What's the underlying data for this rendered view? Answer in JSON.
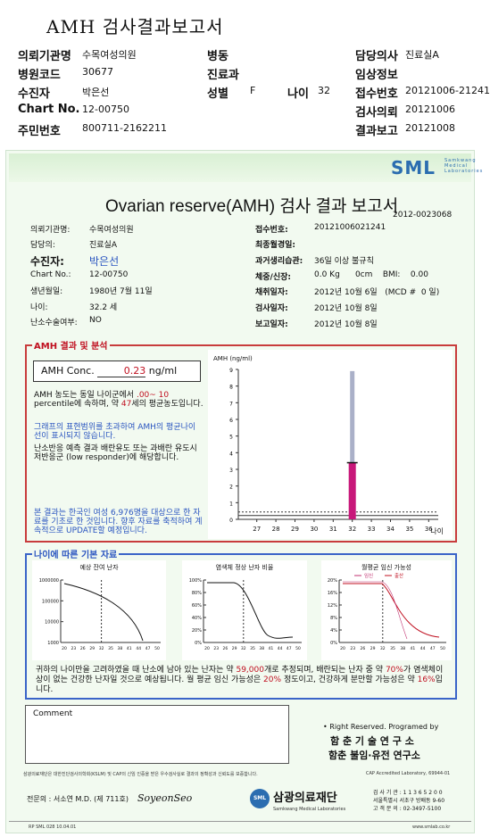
{
  "header": {
    "title": "AMH 검사결과보고서",
    "rows": [
      [
        {
          "l": "의뢰기관명",
          "v": "수목여성의원"
        },
        {
          "l": "병동",
          "v": ""
        },
        {
          "l": "담당의사",
          "v": "진료실A"
        }
      ],
      [
        {
          "l": "병원코드",
          "v": "30677"
        },
        {
          "l": "진료과",
          "v": ""
        },
        {
          "l": "임상정보",
          "v": ""
        }
      ],
      [
        {
          "l": "수진자",
          "v": "박은선"
        },
        {
          "l": "성별",
          "v": "F"
        },
        {
          "l": "나이",
          "v": "32"
        },
        {
          "l": "접수번호",
          "v": "20121006-21241"
        }
      ],
      [
        {
          "l": "Chart No.",
          "v": "12-00750"
        },
        {
          "l": "",
          "v": ""
        },
        {
          "l": "검사의뢰",
          "v": "20121006"
        }
      ],
      [
        {
          "l": "주민번호",
          "v": "800711-2162211"
        },
        {
          "l": "",
          "v": ""
        },
        {
          "l": "결과보고",
          "v": "20121008"
        }
      ]
    ]
  },
  "logo": {
    "text": "SML",
    "sub": "Samkwang Medical Laboratories"
  },
  "report": {
    "title": "Ovarian reserve(AMH) 검사 결과 보고서",
    "doc_no": "2012-0023068",
    "left": [
      {
        "l": "의뢰기관명:",
        "v": "수목여성의원"
      },
      {
        "l": "담당의:",
        "v": "진료실A"
      },
      {
        "l": "수진자:",
        "v": "박은선"
      },
      {
        "l": "Chart No.:",
        "v": "12-00750"
      },
      {
        "l": "생년월일:",
        "v": "1980년 7월 11일"
      },
      {
        "l": "나이:",
        "v": "32.2 세"
      },
      {
        "l": "난소수술여부:",
        "v": "NO"
      }
    ],
    "right": [
      {
        "l": "접수번호:",
        "v": "20121006021241"
      },
      {
        "l": "최종월경일:",
        "v": ""
      },
      {
        "l": "과거생리습관:",
        "v": "36일 이상 불규칙"
      },
      {
        "l": "체중/신장:",
        "v": "0.0 Kg      0cm    BMI:    0.00"
      },
      {
        "l": "채취일자:",
        "v": "2012년 10월 6일   (MCD #  0 일)"
      },
      {
        "l": "검사일자:",
        "v": "2012년 10월 8일"
      },
      {
        "l": "보고일자:",
        "v": "2012년 10월 8일"
      }
    ]
  },
  "amh_section": {
    "label": "AMH 결과 및 분석",
    "conc_label": "AMH Conc.",
    "conc_value": "0.23",
    "conc_unit": "ng/ml",
    "p1a": "AMH 농도는 동일 나이군에서",
    "p1b": ".00~ 10",
    "p1c": "percentile에 속하며, 약",
    "p1d": "47",
    "p1e": "세의 평균농도입니다.",
    "p2": "그래프의 표현범위를 초과하여 AMH의 평균나이선이 표시되지 않습니다.",
    "p3": "난소반응 예측 결과 배란유도 또는 과배란 유도시 저반응군 (low responder)에 해당합니다.",
    "p4": "본 결과는 한국인 여성 6,976명을 대상으로 한 자료를 기초로 한 것입니다. 향후 자료를 축적하여 계속적으로 UPDATE할 예정입니다."
  },
  "age_section": {
    "label": "나이에 따른 기본 자료",
    "footnote_a": "귀하의 나이만을 고려하였을 때 난소에 남아 있는 난자는 약",
    "footnote_b": "59,000",
    "footnote_c": "개로 추정되며, 배란되는 난자 중 약",
    "footnote_d": "70%",
    "footnote_e": "가 염색체이상이 없는 건강한 난자일 것으로 예상됩니다. 월 평균 임신 가능성은",
    "footnote_f": "20%",
    "footnote_g": "정도이고, 건강하게 분만할 가능성은 약",
    "footnote_h": "16%",
    "footnote_i": "입니다."
  },
  "chart_data": [
    {
      "type": "bar",
      "title": "",
      "ylabel": "AMH (ng/ml)",
      "xlabel": "나이",
      "categories": [
        "27",
        "28",
        "29",
        "30",
        "31",
        "32",
        "33",
        "34",
        "35",
        "36"
      ],
      "ylim": [
        0,
        9
      ],
      "series": [
        {
          "values": [
            null,
            null,
            null,
            null,
            null,
            3.4,
            null,
            null,
            null,
            null
          ]
        }
      ],
      "range_bar": {
        "x": "32",
        "low": 3.4,
        "high": 8.9
      },
      "patient": {
        "x": "32",
        "value": 0.23
      }
    },
    {
      "type": "line",
      "title": "예상 잔여 난자",
      "yscale": "log",
      "yticks": [
        "1000000",
        "100000",
        "10000",
        "1000"
      ],
      "xticks": [
        "20",
        "23",
        "26",
        "29",
        "32",
        "35",
        "38",
        "41",
        "44",
        "47",
        "50"
      ]
    },
    {
      "type": "line",
      "title": "염색체 정상 난자 비율",
      "yticks": [
        "100%",
        "80%",
        "60%",
        "40%",
        "20%",
        "0%"
      ],
      "xticks": [
        "20",
        "23",
        "26",
        "29",
        "32",
        "35",
        "38",
        "41",
        "44",
        "47",
        "50"
      ]
    },
    {
      "type": "line",
      "title": "월평균 임신 가능성",
      "legend": [
        {
          "name": "임신",
          "color": "#c03070"
        },
        {
          "name": "출산",
          "color": "#c01020"
        }
      ],
      "yticks": [
        "20%",
        "16%",
        "12%",
        "8%",
        "4%",
        "0%"
      ],
      "xticks": [
        "20",
        "23",
        "26",
        "29",
        "32",
        "35",
        "38",
        "41",
        "44",
        "47",
        "50"
      ]
    }
  ],
  "comment_label": "Comment",
  "signoff": {
    "rights": "• Right Reserved. Programed by",
    "org1": "함 춘 기 술 연 구 소",
    "org2": "함춘 불임·유전 연구소",
    "cap": "CAP  Accredited  Laboratory,  69944-01",
    "disclaimer": "삼광의료재단은 대한진단검사의학회(KSLM) 및 CAP의 신임 인증을 받은 우수검사실로 결과의 정확성과 신뢰도를 보증합니다.",
    "doctor": "전문의 : 서소연 M.D. (제 711호)",
    "foundation": "삼광의료재단",
    "foundation_sub": "Samkwang Medical Laboratories",
    "lic": "검 사 기 관 : 1 1 3 6 5 2 0 0",
    "addr": "서울특별시 서초구 방배동 9-60",
    "tel": "고 객 문 의 : 02-3497-5100",
    "form": "RP  SML  028  10.04.01",
    "web": "www.smlab.co.kr"
  }
}
